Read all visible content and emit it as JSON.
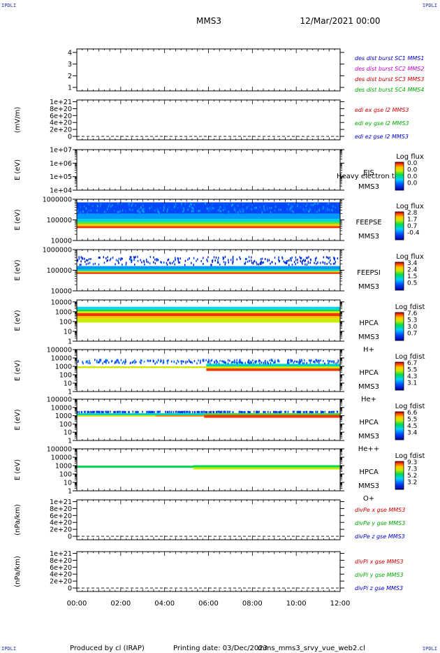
{
  "header": {
    "mission": "MMS3",
    "date": "12/Mar/2021 00:00",
    "corner_mark": "IPDLI"
  },
  "footer": {
    "producer": "Produced by cl (IRAP)",
    "printing_date": "Printing date: 03/Dec/2023",
    "filename": "mms_mms3_srvy_vue_web2.cl"
  },
  "time_axis": {
    "ticks": [
      "00:00",
      "02:00",
      "04:00",
      "06:00",
      "08:00",
      "10:00",
      "12:00"
    ]
  },
  "chart_data": [
    {
      "id": "burst",
      "type": "line",
      "ylabel": "",
      "yticks": [
        "1",
        "2",
        "3",
        "4"
      ],
      "ylim": [
        0.7,
        4.3
      ],
      "legend": [
        {
          "text": "des dist burst SC1 MMS1",
          "color": "#0000cc"
        },
        {
          "text": "des dist burst SC2 MMS2",
          "color": "#cc00cc"
        },
        {
          "text": "des dist burst SC3 MMS3",
          "color": "#cc0000"
        },
        {
          "text": "des dist burst SC4 MMS4",
          "color": "#00aa00"
        }
      ]
    },
    {
      "id": "edi",
      "type": "line",
      "ylabel": "(mV/m)",
      "yticks": [
        "0",
        "2e+20",
        "4e+20",
        "6e+20",
        "8e+20",
        "1e+21"
      ],
      "ylim": [
        -1e+20,
        1.05e+21
      ],
      "zero_line": true,
      "legend": [
        {
          "text": "edi ex gse l2 MMS3",
          "color": "#cc0000"
        },
        {
          "text": "edi ey gse l2 MMS3",
          "color": "#00aa00"
        },
        {
          "text": "edi ez gse l2 MMS3",
          "color": "#0000cc"
        }
      ]
    },
    {
      "id": "eis",
      "type": "heatmap",
      "ylabel": "E (eV)",
      "log": true,
      "yticks": [
        "1e+04",
        "1e+05",
        "1e+06",
        "1e+07"
      ],
      "ylim": [
        4,
        7
      ],
      "instrument": [
        "EIS",
        "MMS3"
      ],
      "overlay_text": "Heavy electron ta",
      "colorbar": {
        "title": "Log flux",
        "labels": [
          "0.0",
          "0.0",
          "0.0",
          "0.0"
        ]
      },
      "bands": []
    },
    {
      "id": "feepse",
      "type": "heatmap",
      "ylabel": "E (eV)",
      "log": true,
      "yticks": [
        "10000",
        "100000",
        "1000000"
      ],
      "ylim": [
        4,
        6
      ],
      "instrument": [
        "FEEPSE",
        "MMS3"
      ],
      "colorbar": {
        "title": "Log flux",
        "labels": [
          "2.8",
          "1.7",
          "0.7",
          "-0.4"
        ]
      },
      "bands": [
        {
          "y": [
            4.6,
            4.7
          ],
          "level": 0.95
        },
        {
          "y": [
            4.7,
            4.8
          ],
          "level": 0.8
        },
        {
          "y": [
            4.8,
            4.9
          ],
          "level": 0.62
        },
        {
          "y": [
            4.9,
            5.05
          ],
          "level": 0.42
        },
        {
          "y": [
            5.05,
            5.3
          ],
          "level": 0.3
        },
        {
          "y": [
            5.3,
            5.85
          ],
          "level": 0.18
        }
      ],
      "speckle": {
        "y": [
          5.3,
          5.85
        ],
        "level": 0.27
      }
    },
    {
      "id": "feepsi",
      "type": "heatmap",
      "ylabel": "E (eV)",
      "log": true,
      "yticks": [
        "10000",
        "100000",
        "1000000"
      ],
      "ylim": [
        4,
        6
      ],
      "instrument": [
        "FEEPSI",
        "MMS3"
      ],
      "colorbar": {
        "title": "Log flux",
        "labels": [
          "3.4",
          "2.4",
          "1.5",
          "0.5"
        ]
      },
      "bands": [
        {
          "y": [
            4.82,
            4.9
          ],
          "level": 0.95
        },
        {
          "y": [
            4.9,
            4.96
          ],
          "level": 0.75
        },
        {
          "y": [
            4.96,
            5.05
          ],
          "level": 0.45
        },
        {
          "y": [
            5.05,
            5.2
          ],
          "level": 0.3
        }
      ],
      "speckle": {
        "y": [
          5.2,
          5.7
        ],
        "level": 0.12
      }
    },
    {
      "id": "hpca-h",
      "type": "heatmap",
      "ylabel": "E (eV)",
      "log": true,
      "yticks": [
        "1",
        "10",
        "100",
        "1000",
        "10000"
      ],
      "ylim": [
        0,
        4.2
      ],
      "instrument": [
        "HPCA",
        "MMS3",
        "H+"
      ],
      "colorbar": {
        "title": "Log fdist",
        "labels": [
          "7.6",
          "5.3",
          "3.0",
          "0.7"
        ]
      },
      "bands": [
        {
          "y": [
            1.9,
            2.3
          ],
          "level": 0.7
        },
        {
          "y": [
            2.3,
            2.55
          ],
          "level": 0.8
        },
        {
          "y": [
            2.55,
            2.85
          ],
          "level": 0.95
        },
        {
          "y": [
            2.85,
            3.05
          ],
          "level": 0.75
        },
        {
          "y": [
            3.05,
            3.25
          ],
          "level": 0.55
        },
        {
          "y": [
            3.25,
            3.5
          ],
          "level": 0.38
        }
      ]
    },
    {
      "id": "hpca-he",
      "type": "heatmap",
      "ylabel": "E (eV)",
      "log": true,
      "yticks": [
        "1",
        "10",
        "100",
        "1000",
        "10000",
        "100000"
      ],
      "ylim": [
        0,
        5
      ],
      "instrument": [
        "HPCA",
        "MMS3",
        "He+"
      ],
      "colorbar": {
        "title": "Log fdist",
        "labels": [
          "6.7",
          "5.5",
          "4.3",
          "3.1"
        ]
      },
      "bands": [
        {
          "t": [
            0,
            5.9
          ],
          "y": [
            2.8,
            3.0
          ],
          "level": 0.72
        },
        {
          "t": [
            5.9,
            12
          ],
          "y": [
            2.45,
            2.75
          ],
          "level": 0.95
        },
        {
          "t": [
            5.9,
            12
          ],
          "y": [
            2.75,
            3.0
          ],
          "level": 0.7
        },
        {
          "t": [
            5.9,
            12
          ],
          "y": [
            3.0,
            3.3
          ],
          "level": 0.45
        }
      ],
      "speckle": {
        "y": [
          3.2,
          3.9
        ],
        "level": 0.2
      }
    },
    {
      "id": "hpca-he2",
      "type": "heatmap",
      "ylabel": "E (eV)",
      "log": true,
      "yticks": [
        "1",
        "10",
        "100",
        "1000",
        "10000",
        "100000"
      ],
      "ylim": [
        0,
        5
      ],
      "instrument": [
        "HPCA",
        "MMS3",
        "He++"
      ],
      "colorbar": {
        "title": "Log fdist",
        "labels": [
          "6.6",
          "5.5",
          "4.5",
          "3.4"
        ]
      },
      "bands": [
        {
          "t": [
            0,
            12
          ],
          "y": [
            2.9,
            3.05
          ],
          "level": 0.72
        },
        {
          "t": [
            0,
            12
          ],
          "y": [
            3.05,
            3.3
          ],
          "level": 0.45
        },
        {
          "t": [
            3.6,
            5.8
          ],
          "y": [
            2.9,
            3.05
          ],
          "level": 0.88
        },
        {
          "t": [
            5.8,
            12
          ],
          "y": [
            2.75,
            3.1
          ],
          "level": 0.95
        },
        {
          "t": [
            5.8,
            12
          ],
          "y": [
            3.1,
            3.3
          ],
          "level": 0.6
        }
      ],
      "speckle": {
        "y": [
          3.3,
          3.6
        ],
        "level": 0.15
      }
    },
    {
      "id": "hpca-o",
      "type": "heatmap",
      "ylabel": "E (eV)",
      "log": true,
      "yticks": [
        "1",
        "10",
        "100",
        "1000",
        "10000",
        "100000"
      ],
      "ylim": [
        0,
        5
      ],
      "instrument": [
        "HPCA",
        "MMS3",
        "O+"
      ],
      "colorbar": {
        "title": "Log fdist",
        "labels": [
          "9.3",
          "7.3",
          "5.2",
          "3.2"
        ]
      },
      "bands": [
        {
          "t": [
            0,
            5.3
          ],
          "y": [
            2.75,
            3.0
          ],
          "level": 0.55
        },
        {
          "t": [
            5.3,
            12
          ],
          "y": [
            2.55,
            2.8
          ],
          "level": 0.7
        },
        {
          "t": [
            5.3,
            12
          ],
          "y": [
            2.8,
            3.05
          ],
          "level": 0.55
        }
      ]
    },
    {
      "id": "divpe",
      "type": "line",
      "ylabel": "(nPa/km)",
      "yticks": [
        "0",
        "2e+20",
        "4e+20",
        "6e+20",
        "8e+20",
        "1e+21"
      ],
      "ylim": [
        -1e+20,
        1.05e+21
      ],
      "zero_line": true,
      "legend": [
        {
          "text": "divPe x gse MMS3",
          "color": "#cc0000"
        },
        {
          "text": "divPe y gse MMS3",
          "color": "#00aa00"
        },
        {
          "text": "divPe z gse MMS3",
          "color": "#0000cc"
        }
      ]
    },
    {
      "id": "divpi",
      "type": "line",
      "ylabel": "(nPa/km)",
      "yticks": [
        "0",
        "2e+20",
        "4e+20",
        "6e+20",
        "8e+20",
        "1e+21"
      ],
      "ylim": [
        -1e+20,
        1.05e+21
      ],
      "zero_line": true,
      "legend": [
        {
          "text": "divPi x gse MMS3",
          "color": "#cc0000"
        },
        {
          "text": "divPi y gse MMS3",
          "color": "#00aa00"
        },
        {
          "text": "divPi z gse MMS3",
          "color": "#0000cc"
        }
      ]
    }
  ]
}
